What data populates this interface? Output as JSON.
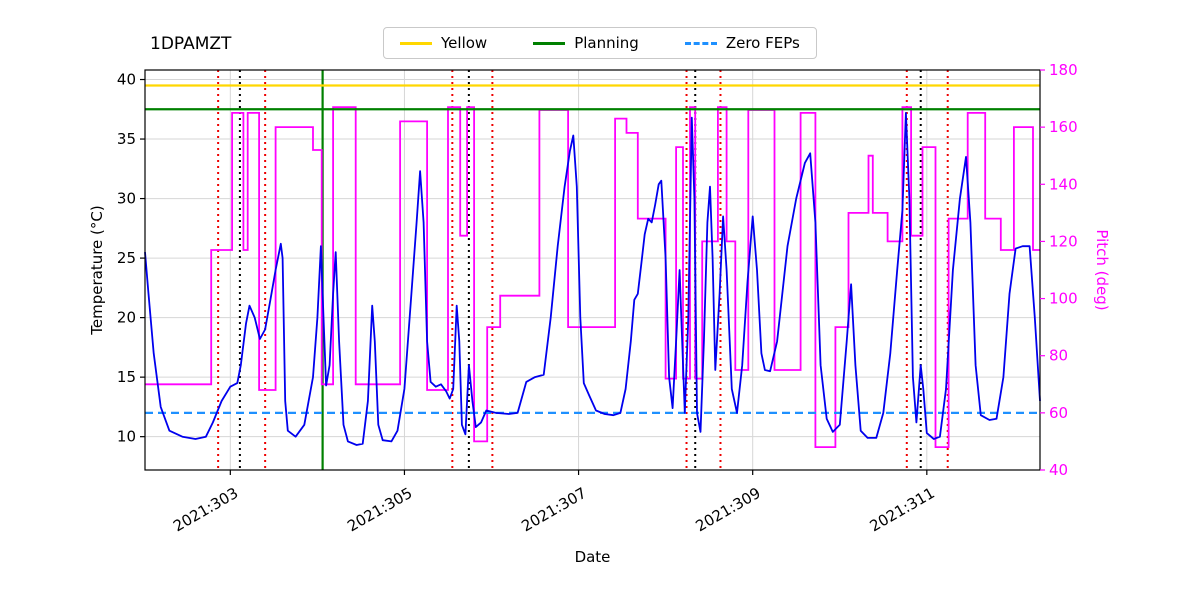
{
  "legend": {
    "entries": [
      {
        "label": "Yellow",
        "color": "#ffd700",
        "dash": "solid"
      },
      {
        "label": "Planning",
        "color": "#008000",
        "dash": "solid"
      },
      {
        "label": "Zero FEPs",
        "color": "#1e90ff",
        "dash": "dashed"
      }
    ]
  },
  "chart_data": {
    "type": "line",
    "title": "1DPAMZT",
    "xlabel": "Date",
    "ylabel_left": "Temperature (°C)",
    "ylabel_right": "Pitch (deg)",
    "xlim": [
      302.02,
      312.3
    ],
    "ylim_left": [
      7.2,
      40.8
    ],
    "ylim_right": [
      40,
      180
    ],
    "grid": true,
    "x_ticks": [
      {
        "value": 303,
        "label": "2021:303"
      },
      {
        "value": 305,
        "label": "2021:305"
      },
      {
        "value": 307,
        "label": "2021:307"
      },
      {
        "value": 309,
        "label": "2021:309"
      },
      {
        "value": 311,
        "label": "2021:311"
      }
    ],
    "y_ticks_left": [
      10,
      15,
      20,
      25,
      30,
      35,
      40
    ],
    "y_ticks_right": [
      40,
      60,
      80,
      100,
      120,
      140,
      160,
      180
    ],
    "limit_lines": [
      {
        "name": "Yellow",
        "axis": "left",
        "y": 39.5,
        "color": "#ffd700",
        "dash": "solid"
      },
      {
        "name": "Planning",
        "axis": "left",
        "y": 37.5,
        "color": "#008000",
        "dash": "solid"
      },
      {
        "name": "Zero FEPs",
        "axis": "left",
        "y": 12.0,
        "color": "#1e90ff",
        "dash": "dashed"
      }
    ],
    "event_lines": {
      "red_dotted_x": [
        302.86,
        303.4,
        305.55,
        306.01,
        308.24,
        308.63,
        310.77,
        311.24
      ],
      "black_dotted_x": [
        303.11,
        305.74,
        308.34,
        310.93
      ],
      "green_solid_x": [
        304.06
      ]
    },
    "series": [
      {
        "name": "1DPAMZT temperature",
        "axis": "left",
        "color": "#0000ee",
        "style": "line",
        "points": [
          [
            302.02,
            25.5
          ],
          [
            302.06,
            22
          ],
          [
            302.12,
            17
          ],
          [
            302.2,
            12.5
          ],
          [
            302.3,
            10.5
          ],
          [
            302.45,
            10
          ],
          [
            302.6,
            9.8
          ],
          [
            302.72,
            10
          ],
          [
            302.8,
            11.2
          ],
          [
            302.9,
            13
          ],
          [
            303.0,
            14.2
          ],
          [
            303.08,
            14.5
          ],
          [
            303.12,
            16
          ],
          [
            303.18,
            19.5
          ],
          [
            303.22,
            21
          ],
          [
            303.28,
            20
          ],
          [
            303.34,
            18.2
          ],
          [
            303.4,
            19
          ],
          [
            303.46,
            21.5
          ],
          [
            303.52,
            24
          ],
          [
            303.58,
            26.2
          ],
          [
            303.6,
            25
          ],
          [
            303.63,
            13
          ],
          [
            303.66,
            10.5
          ],
          [
            303.75,
            10
          ],
          [
            303.85,
            11
          ],
          [
            303.95,
            15
          ],
          [
            304.0,
            20
          ],
          [
            304.04,
            26
          ],
          [
            304.07,
            20
          ],
          [
            304.1,
            14.3
          ],
          [
            304.14,
            16
          ],
          [
            304.18,
            22
          ],
          [
            304.21,
            25.5
          ],
          [
            304.25,
            18
          ],
          [
            304.3,
            11
          ],
          [
            304.35,
            9.6
          ],
          [
            304.45,
            9.3
          ],
          [
            304.52,
            9.4
          ],
          [
            304.58,
            13
          ],
          [
            304.63,
            21
          ],
          [
            304.66,
            18
          ],
          [
            304.7,
            11
          ],
          [
            304.75,
            9.7
          ],
          [
            304.85,
            9.6
          ],
          [
            304.92,
            10.5
          ],
          [
            305.0,
            14
          ],
          [
            305.08,
            22
          ],
          [
            305.14,
            28
          ],
          [
            305.18,
            32.3
          ],
          [
            305.22,
            28
          ],
          [
            305.26,
            18
          ],
          [
            305.3,
            14.6
          ],
          [
            305.36,
            14.2
          ],
          [
            305.42,
            14.4
          ],
          [
            305.48,
            13.8
          ],
          [
            305.52,
            13.2
          ],
          [
            305.56,
            14
          ],
          [
            305.6,
            21
          ],
          [
            305.63,
            18
          ],
          [
            305.66,
            11
          ],
          [
            305.7,
            10.2
          ],
          [
            305.74,
            16
          ],
          [
            305.78,
            13
          ],
          [
            305.82,
            10.8
          ],
          [
            305.88,
            11.2
          ],
          [
            305.94,
            12.2
          ],
          [
            306.05,
            12
          ],
          [
            306.2,
            11.9
          ],
          [
            306.3,
            12
          ],
          [
            306.4,
            14.6
          ],
          [
            306.5,
            15
          ],
          [
            306.6,
            15.2
          ],
          [
            306.68,
            20
          ],
          [
            306.76,
            26
          ],
          [
            306.84,
            31
          ],
          [
            306.9,
            34
          ],
          [
            306.94,
            35.3
          ],
          [
            306.98,
            31
          ],
          [
            307.02,
            20
          ],
          [
            307.06,
            14.5
          ],
          [
            307.12,
            13.5
          ],
          [
            307.2,
            12.2
          ],
          [
            307.3,
            11.9
          ],
          [
            307.4,
            11.8
          ],
          [
            307.48,
            12
          ],
          [
            307.54,
            14
          ],
          [
            307.6,
            18
          ],
          [
            307.64,
            21.5
          ],
          [
            307.68,
            22
          ],
          [
            307.72,
            24.5
          ],
          [
            307.76,
            27
          ],
          [
            307.8,
            28.3
          ],
          [
            307.84,
            28
          ],
          [
            307.88,
            29.5
          ],
          [
            307.92,
            31.2
          ],
          [
            307.95,
            31.5
          ],
          [
            308.0,
            25
          ],
          [
            308.04,
            15
          ],
          [
            308.08,
            12.4
          ],
          [
            308.12,
            18
          ],
          [
            308.16,
            24
          ],
          [
            308.18,
            20
          ],
          [
            308.22,
            12
          ],
          [
            308.26,
            20
          ],
          [
            308.3,
            36.8
          ],
          [
            308.33,
            30
          ],
          [
            308.36,
            12
          ],
          [
            308.4,
            10.4
          ],
          [
            308.44,
            18
          ],
          [
            308.48,
            28
          ],
          [
            308.51,
            31
          ],
          [
            308.54,
            25
          ],
          [
            308.57,
            15.6
          ],
          [
            308.62,
            22
          ],
          [
            308.66,
            28.5
          ],
          [
            308.7,
            24
          ],
          [
            308.76,
            14
          ],
          [
            308.82,
            12
          ],
          [
            308.88,
            16
          ],
          [
            308.94,
            23
          ],
          [
            309.0,
            28.5
          ],
          [
            309.05,
            24
          ],
          [
            309.1,
            17
          ],
          [
            309.14,
            15.6
          ],
          [
            309.2,
            15.5
          ],
          [
            309.28,
            18
          ],
          [
            309.4,
            26
          ],
          [
            309.5,
            30
          ],
          [
            309.6,
            33
          ],
          [
            309.66,
            33.8
          ],
          [
            309.72,
            28
          ],
          [
            309.78,
            16
          ],
          [
            309.85,
            11.5
          ],
          [
            309.92,
            10.4
          ],
          [
            310.0,
            11
          ],
          [
            310.08,
            18
          ],
          [
            310.13,
            22.8
          ],
          [
            310.18,
            16
          ],
          [
            310.24,
            10.5
          ],
          [
            310.32,
            9.9
          ],
          [
            310.42,
            9.9
          ],
          [
            310.5,
            12
          ],
          [
            310.58,
            17
          ],
          [
            310.66,
            24
          ],
          [
            310.72,
            29
          ],
          [
            310.76,
            37.2
          ],
          [
            310.8,
            30
          ],
          [
            310.84,
            15
          ],
          [
            310.88,
            11.2
          ],
          [
            310.93,
            16
          ],
          [
            310.96,
            14
          ],
          [
            311.0,
            10.3
          ],
          [
            311.08,
            9.8
          ],
          [
            311.15,
            10
          ],
          [
            311.22,
            14
          ],
          [
            311.3,
            24
          ],
          [
            311.38,
            30
          ],
          [
            311.45,
            33.5
          ],
          [
            311.5,
            28
          ],
          [
            311.56,
            16
          ],
          [
            311.62,
            11.8
          ],
          [
            311.72,
            11.4
          ],
          [
            311.8,
            11.5
          ],
          [
            311.88,
            15
          ],
          [
            311.95,
            22
          ],
          [
            312.02,
            25.8
          ],
          [
            312.1,
            26
          ],
          [
            312.18,
            26
          ],
          [
            312.24,
            20
          ],
          [
            312.3,
            13
          ]
        ]
      },
      {
        "name": "Pitch",
        "axis": "right",
        "color": "#ff00ff",
        "style": "step",
        "x_end": 312.3,
        "points": [
          [
            302.02,
            70
          ],
          [
            302.78,
            117
          ],
          [
            303.02,
            165
          ],
          [
            303.15,
            117
          ],
          [
            303.2,
            165
          ],
          [
            303.33,
            68
          ],
          [
            303.52,
            160
          ],
          [
            303.95,
            152
          ],
          [
            304.05,
            70
          ],
          [
            304.18,
            167
          ],
          [
            304.44,
            70
          ],
          [
            304.95,
            162
          ],
          [
            305.26,
            68
          ],
          [
            305.5,
            167
          ],
          [
            305.64,
            122
          ],
          [
            305.72,
            167
          ],
          [
            305.8,
            50
          ],
          [
            305.95,
            90
          ],
          [
            306.1,
            101
          ],
          [
            306.55,
            166
          ],
          [
            306.88,
            90
          ],
          [
            307.42,
            163
          ],
          [
            307.55,
            158
          ],
          [
            307.68,
            128
          ],
          [
            308.0,
            72
          ],
          [
            308.12,
            153
          ],
          [
            308.2,
            72
          ],
          [
            308.28,
            167
          ],
          [
            308.34,
            72
          ],
          [
            308.42,
            120
          ],
          [
            308.6,
            167
          ],
          [
            308.7,
            120
          ],
          [
            308.8,
            75
          ],
          [
            308.95,
            166
          ],
          [
            309.25,
            75
          ],
          [
            309.55,
            165
          ],
          [
            309.72,
            48
          ],
          [
            309.95,
            90
          ],
          [
            310.1,
            130
          ],
          [
            310.33,
            150
          ],
          [
            310.38,
            130
          ],
          [
            310.55,
            120
          ],
          [
            310.72,
            167
          ],
          [
            310.82,
            122
          ],
          [
            310.95,
            153
          ],
          [
            311.1,
            48
          ],
          [
            311.25,
            128
          ],
          [
            311.47,
            165
          ],
          [
            311.67,
            128
          ],
          [
            311.85,
            117
          ],
          [
            312.0,
            160
          ],
          [
            312.22,
            117
          ]
        ]
      }
    ]
  }
}
